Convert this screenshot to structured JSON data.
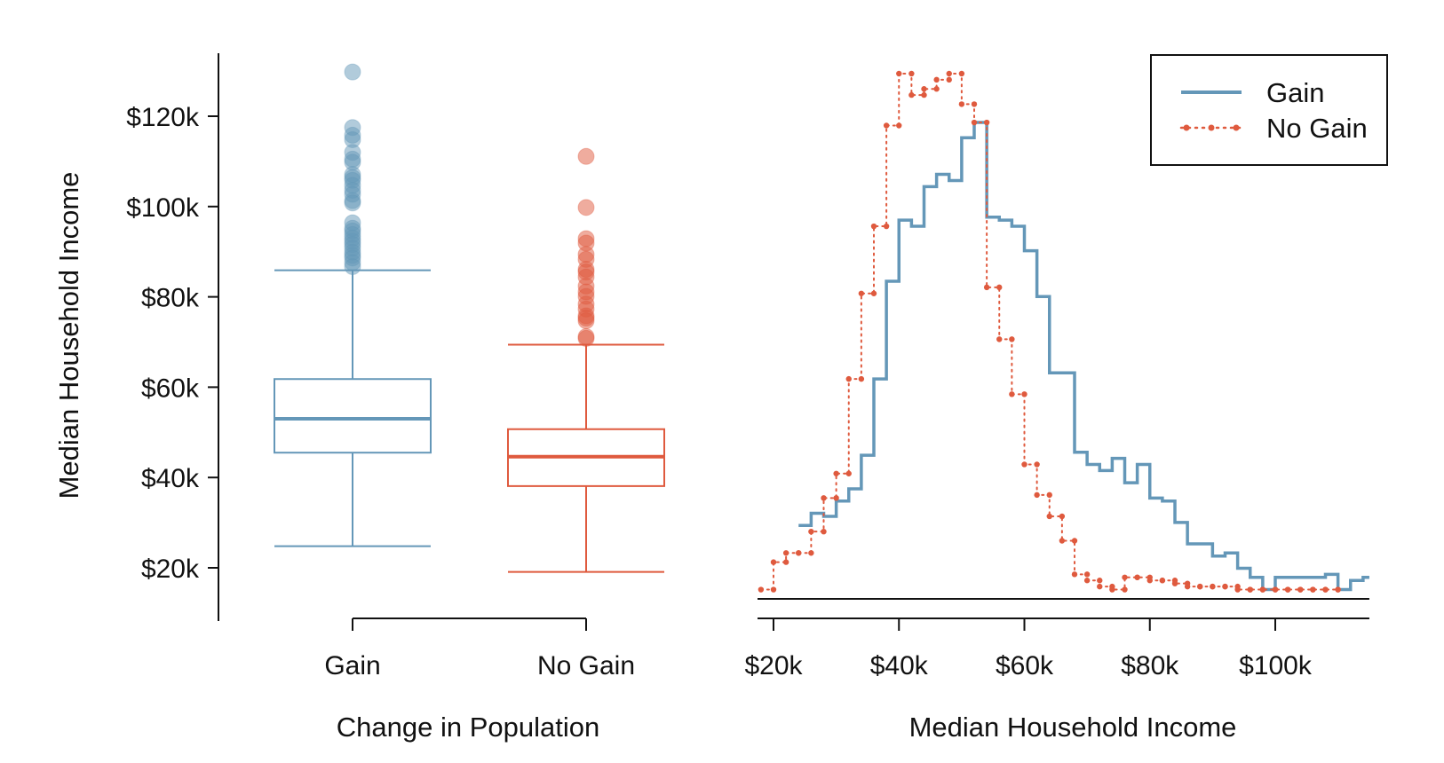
{
  "colors": {
    "gain": "#6497b8",
    "no_gain": "#df5a3e",
    "axis": "#111111"
  },
  "chart_data": [
    {
      "type": "box",
      "xlabel": "Change in Population",
      "ylabel": "Median Household Income",
      "ylim": [
        18000,
        130000
      ],
      "yticks": [
        {
          "value": 20000,
          "label": "$20k"
        },
        {
          "value": 40000,
          "label": "$40k"
        },
        {
          "value": 60000,
          "label": "$60k"
        },
        {
          "value": 80000,
          "label": "$80k"
        },
        {
          "value": 100000,
          "label": "$100k"
        },
        {
          "value": 120000,
          "label": "$120k"
        }
      ],
      "boxes": [
        {
          "name": "Gain",
          "whisker_low": 24800,
          "q1": 45500,
          "median": 53000,
          "q3": 61800,
          "whisker_high": 85900,
          "outliers": [
            129800,
            117500,
            115800,
            114800,
            112000,
            110500,
            109800,
            107100,
            106400,
            105800,
            104700,
            103600,
            102700,
            101300,
            100800,
            96400,
            95200,
            94600,
            93800,
            93000,
            92300,
            91600,
            90800,
            89900,
            89200,
            88600,
            87600,
            86700
          ]
        },
        {
          "name": "No Gain",
          "whisker_low": 19100,
          "q1": 38100,
          "median": 44600,
          "q3": 50700,
          "whisker_high": 69400,
          "outliers": [
            111100,
            99800,
            92900,
            91900,
            89400,
            88300,
            86100,
            85500,
            84400,
            82400,
            81100,
            80100,
            78400,
            77300,
            75800,
            75300,
            74700,
            71200,
            70800
          ]
        }
      ]
    },
    {
      "type": "line",
      "step": true,
      "xlabel": "Median Household Income",
      "xlim": [
        16000,
        115000
      ],
      "xticks": [
        {
          "value": 20000,
          "label": "$20k"
        },
        {
          "value": 40000,
          "label": "$40k"
        },
        {
          "value": 60000,
          "label": "$60k"
        },
        {
          "value": 80000,
          "label": "$80k"
        },
        {
          "value": 100000,
          "label": "$100k"
        }
      ],
      "legend_position": "top-right",
      "series": [
        {
          "name": "Gain",
          "style": "solid",
          "x": [
            24000,
            26000,
            28000,
            30000,
            32000,
            34000,
            36000,
            38000,
            40000,
            42000,
            44000,
            46000,
            48000,
            50000,
            52000,
            54000,
            56000,
            58000,
            60000,
            62000,
            64000,
            66000,
            68000,
            70000,
            72000,
            74000,
            76000,
            78000,
            80000,
            82000,
            84000,
            86000,
            88000,
            90000,
            92000,
            94000,
            96000,
            98000,
            100000,
            102000,
            104000,
            106000,
            108000,
            110000,
            112000,
            114000,
            115000
          ],
          "y": [
            0.022,
            0.026,
            0.025,
            0.03,
            0.034,
            0.045,
            0.07,
            0.102,
            0.122,
            0.12,
            0.133,
            0.137,
            0.135,
            0.149,
            0.154,
            0.123,
            0.122,
            0.12,
            0.112,
            0.097,
            0.072,
            0.072,
            0.046,
            0.042,
            0.04,
            0.044,
            0.036,
            0.042,
            0.031,
            0.03,
            0.023,
            0.016,
            0.016,
            0.012,
            0.013,
            0.008,
            0.005,
            0.001,
            0.005,
            0.005,
            0.005,
            0.005,
            0.006,
            0.001,
            0.004,
            0.005,
            0.005
          ]
        },
        {
          "name": "No Gain",
          "style": "dotted",
          "x": [
            18000,
            20000,
            22000,
            24000,
            26000,
            28000,
            30000,
            32000,
            34000,
            36000,
            38000,
            40000,
            42000,
            44000,
            46000,
            48000,
            50000,
            52000,
            54000,
            56000,
            58000,
            60000,
            62000,
            64000,
            66000,
            68000,
            70000,
            72000,
            74000,
            76000,
            78000,
            80000,
            82000,
            84000,
            86000,
            88000,
            90000,
            92000,
            94000,
            96000,
            98000,
            100000,
            102000,
            104000,
            106000,
            108000,
            110000
          ],
          "y": [
            0.001,
            0.01,
            0.013,
            0.013,
            0.02,
            0.031,
            0.039,
            0.07,
            0.098,
            0.12,
            0.153,
            0.17,
            0.163,
            0.165,
            0.168,
            0.17,
            0.16,
            0.154,
            0.1,
            0.083,
            0.065,
            0.042,
            0.032,
            0.025,
            0.017,
            0.006,
            0.004,
            0.002,
            0.001,
            0.005,
            0.005,
            0.004,
            0.004,
            0.003,
            0.002,
            0.002,
            0.002,
            0.002,
            0.001,
            0.001,
            0.001,
            0.001,
            0.001,
            0.001,
            0.001,
            0.001,
            0.001
          ]
        }
      ]
    }
  ]
}
